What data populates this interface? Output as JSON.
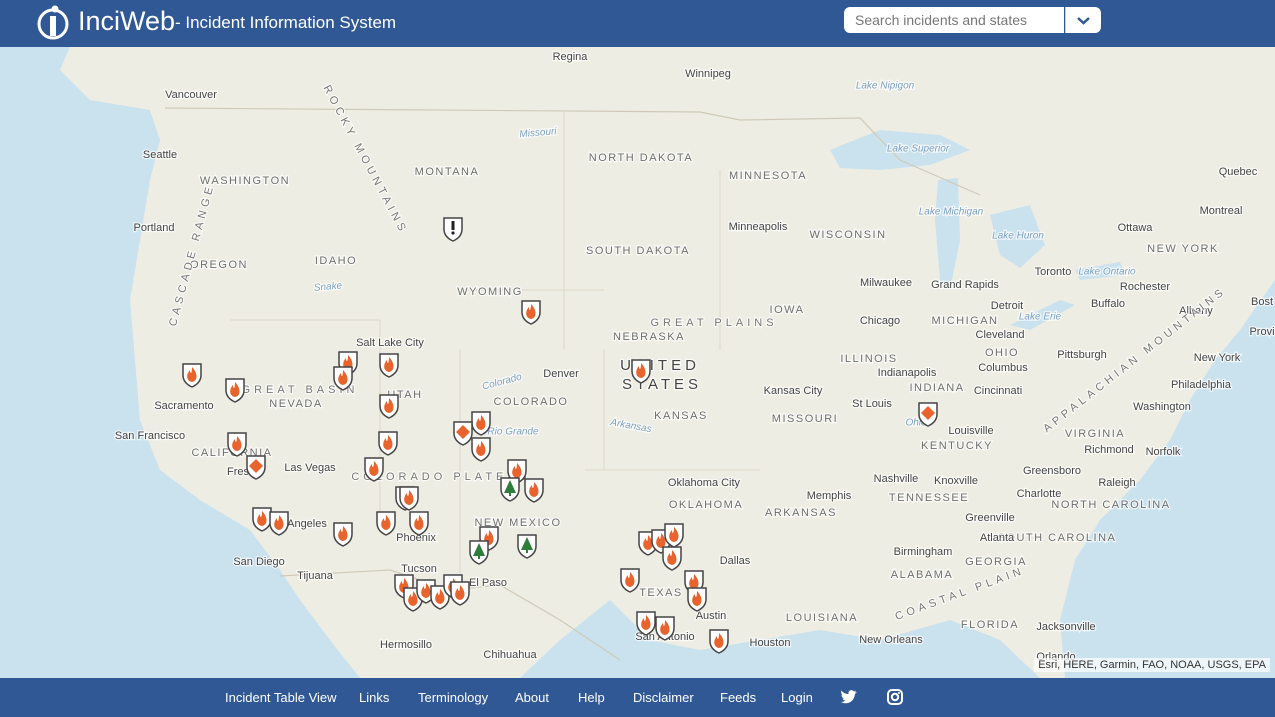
{
  "header": {
    "logo": "InciWeb",
    "subtitle": "- Incident Information System",
    "search_placeholder": "Search incidents and states"
  },
  "map": {
    "labels": [
      "Regina",
      "Winnipeg",
      "Lake Nipigon",
      "Vancouver",
      "Seattle",
      "WASHINGTON",
      "MONTANA",
      "NORTH DAKOTA",
      "MINNESOTA",
      "Lake Superior",
      "Quebec",
      "Montreal",
      "Ottawa",
      "Portland",
      "Minneapolis",
      "WISCONSIN",
      "Lake Michigan",
      "Lake Huron",
      "NEW YORK",
      "OREGON",
      "IDAHO",
      "SOUTH DAKOTA",
      "Toronto",
      "Lake Ontario",
      "Milwaukee",
      "Grand Rapids",
      "Rochester",
      "WYOMING",
      "Buffalo",
      "Detroit",
      "Albany",
      "GREAT PLAINS",
      "IOWA",
      "Chicago",
      "MICHIGAN",
      "Lake Erie",
      "NEBRASKA",
      "Cleveland",
      "Salt Lake City",
      "Pittsburgh",
      "OHIO",
      "ILLINOIS",
      "New York",
      "UNITED",
      "STATES",
      "Indianapolis",
      "Columbus",
      "Denver",
      "GREAT BASIN",
      "Sacramento",
      "NEVADA",
      "UTAH",
      "COLORADO",
      "Kansas City",
      "INDIANA",
      "Cincinnati",
      "Philadelphia",
      "St Louis",
      "MISSOURI",
      "KANSAS",
      "Washington",
      "San Francisco",
      "Louisville",
      "VIRGINIA",
      "CALIFORNIA",
      "KENTUCKY",
      "Richmond",
      "Norfolk",
      "Las Vegas",
      "COLORADO PLATEAU",
      "Oklahoma City",
      "Nashville",
      "Knoxville",
      "Greensboro",
      "Raleigh",
      "OKLAHOMA",
      "TENNESSEE",
      "Charlotte",
      "NORTH CAROLINA",
      "Memphis",
      "ARKANSAS",
      "NEW MEXICO",
      "Angeles",
      "Phoenix",
      "Greenville",
      "SOUTH CAROLINA",
      "Atlanta",
      "Birmingham",
      "Dallas",
      "San Diego",
      "Tijuana",
      "Tucson",
      "El Paso",
      "GEORGIA",
      "ALABAMA",
      "TEXAS",
      "COASTAL PLAIN",
      "Austin",
      "LOUISIANA",
      "FLORIDA",
      "Jacksonville",
      "San Antonio",
      "Houston",
      "New Orleans",
      "Hermosillo",
      "Chihuahua",
      "Orlando",
      "ROCKY MOUNTAINS",
      "CASCADE RANGE",
      "APPALACHIAN MOUNTAINS",
      "Missouri",
      "Snake",
      "Arkansas",
      "Rio Grande",
      "Ohio",
      "Colorado",
      "Fres",
      "Bost",
      "Provi"
    ],
    "attribution": "Esri, HERE, Garmin, FAO, NOAA, USGS, EPA"
  },
  "footer": {
    "links": [
      "Incident Table View",
      "Links",
      "Terminology",
      "About",
      "Help",
      "Disclaimer",
      "Feeds",
      "Login"
    ]
  }
}
